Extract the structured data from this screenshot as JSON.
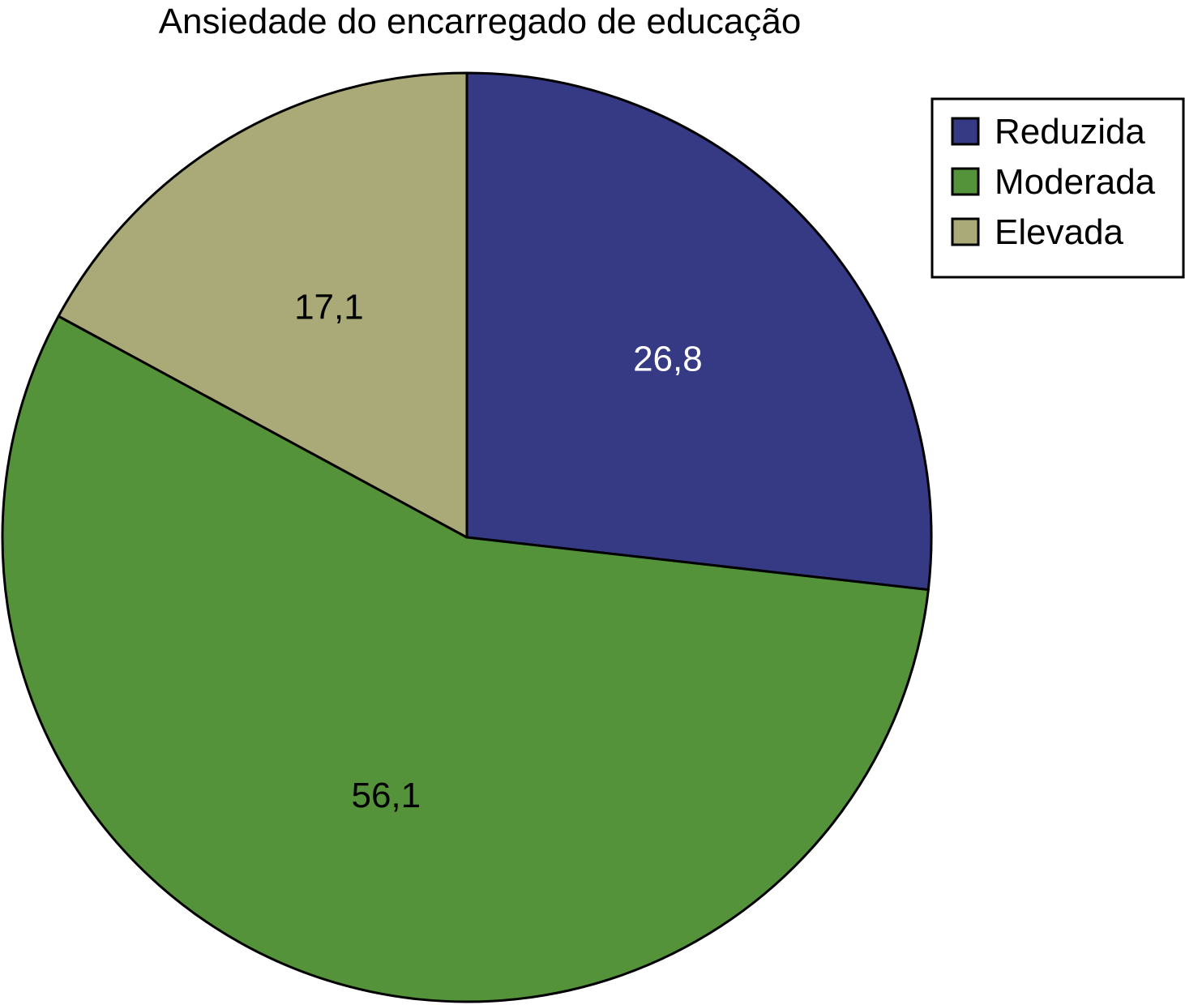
{
  "chart_data": {
    "type": "pie",
    "title": "Ansiedade do encarregado de educação",
    "slices": [
      {
        "name": "Reduzida",
        "value": 26.8,
        "label": "26,8",
        "color": "#363983",
        "label_color": "#ffffff"
      },
      {
        "name": "Moderada",
        "value": 56.1,
        "label": "56,1",
        "color": "#54933a",
        "label_color": "#000000"
      },
      {
        "name": "Elevada",
        "value": 17.1,
        "label": "17,1",
        "color": "#aaaa78",
        "label_color": "#000000"
      }
    ],
    "start_angle": "top",
    "direction": "clockwise",
    "legend": {
      "position": "top-right",
      "entries": [
        "Reduzida",
        "Moderada",
        "Elevada"
      ]
    }
  }
}
